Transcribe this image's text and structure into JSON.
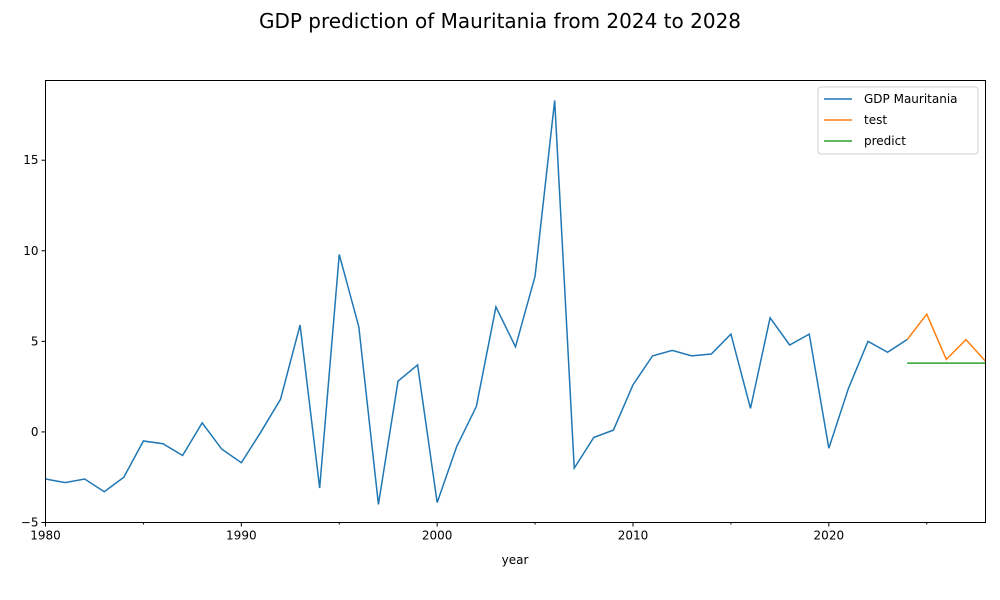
{
  "chart_data": {
    "type": "line",
    "title": "GDP prediction of Mauritania from 2024 to 2028",
    "xlabel": "year",
    "ylabel": "",
    "xlim": [
      1980,
      2028
    ],
    "ylim": [
      -5,
      19.4
    ],
    "x_ticks": [
      1980,
      1990,
      2000,
      2010,
      2020
    ],
    "x_minor_ticks": [
      1985,
      1995,
      2005,
      2015,
      2025
    ],
    "y_ticks": [
      -5,
      0,
      5,
      10,
      15
    ],
    "grid": false,
    "legend_position": "top-right",
    "series": [
      {
        "name": "GDP Mauritania",
        "color": "#1f77b4",
        "x": [
          1980,
          1981,
          1982,
          1983,
          1984,
          1985,
          1986,
          1987,
          1988,
          1989,
          1990,
          1991,
          1992,
          1993,
          1994,
          1995,
          1996,
          1997,
          1998,
          1999,
          2000,
          2001,
          2002,
          2003,
          2004,
          2005,
          2006,
          2007,
          2008,
          2009,
          2010,
          2011,
          2012,
          2013,
          2014,
          2015,
          2016,
          2017,
          2018,
          2019,
          2020,
          2021,
          2022,
          2023,
          2024
        ],
        "values": [
          -2.6,
          -2.8,
          -2.6,
          -3.3,
          -2.5,
          -0.5,
          -0.65,
          -1.3,
          0.5,
          -0.95,
          -1.7,
          0,
          1.8,
          5.9,
          -3.1,
          9.8,
          5.8,
          -4,
          2.8,
          3.7,
          -3.9,
          -0.8,
          1.4,
          6.9,
          4.7,
          8.6,
          18.3,
          -2,
          -0.3,
          0.1,
          2.6,
          4.2,
          4.5,
          4.2,
          4.3,
          5.4,
          1.3,
          6.3,
          4.8,
          5.4,
          -0.9,
          2.4,
          5,
          4.4,
          5.1
        ]
      },
      {
        "name": "test",
        "color": "#ff7f0e",
        "x": [
          2024,
          2025,
          2026,
          2027,
          2028
        ],
        "values": [
          5.1,
          6.5,
          4,
          5.1,
          3.9
        ]
      },
      {
        "name": "predict",
        "color": "#2ca02c",
        "x": [
          2024,
          2025,
          2026,
          2027,
          2028
        ],
        "values": [
          3.8,
          3.8,
          3.8,
          3.8,
          3.8
        ]
      }
    ]
  }
}
